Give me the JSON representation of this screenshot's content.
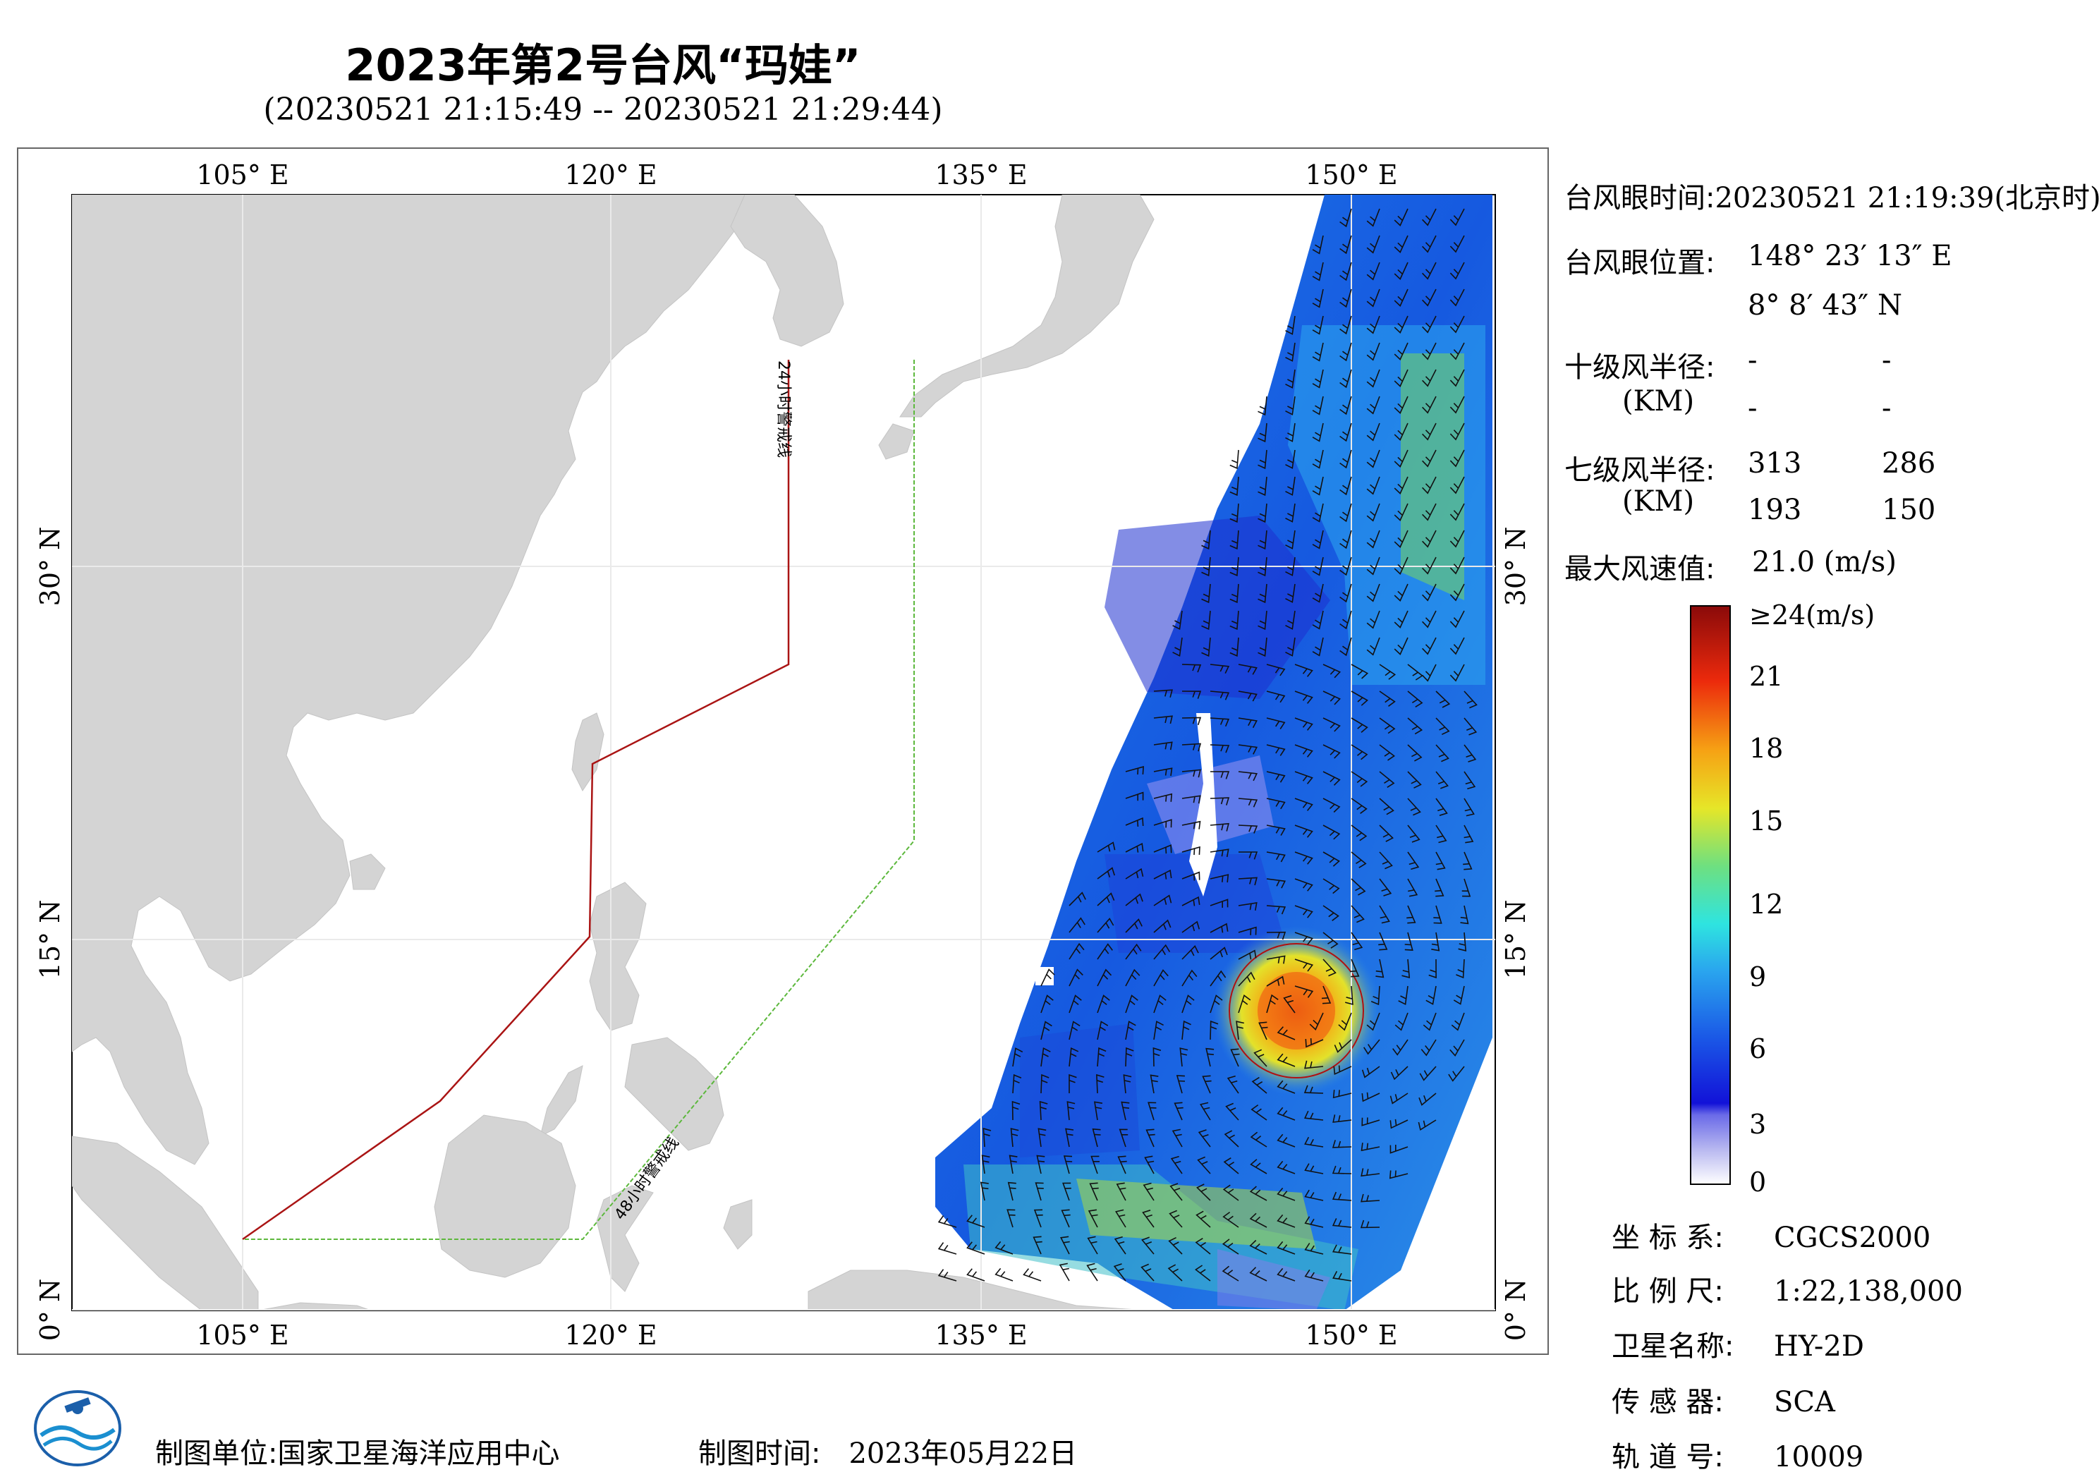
{
  "title": "2023年第2号台风“玛娃”",
  "subtitle": "(20230521 21:15:49 -- 20230521 21:29:44)",
  "map": {
    "lon_ticks": [
      "105° E",
      "120° E",
      "135° E",
      "150° E"
    ],
    "lat_ticks": [
      "30° N",
      "15° N",
      "0° N"
    ],
    "warning_24h": "24小时警戒线",
    "warning_48h": "48小时警戒线",
    "colors": {
      "land": "#d4d4d4",
      "ocean": "#ffffff",
      "warning_24h": "#aa1414",
      "warning_48h": "#5cb83c"
    }
  },
  "info": {
    "eye_time_label": "台风眼时间:",
    "eye_time_value": "20230521 21:19:39(北京时)",
    "eye_pos_label": "台风眼位置:",
    "eye_lon": "148° 23′ 13″ E",
    "eye_lat": "8° 8′ 43″ N",
    "r10_label": "十级风半径:",
    "r10_unit": "(KM)",
    "r10_values": [
      "-",
      "-",
      "-",
      "-"
    ],
    "r7_label": "七级风半径:",
    "r7_unit": "(KM)",
    "r7_values": [
      "313",
      "286",
      "193",
      "150"
    ],
    "max_wind_label": "最大风速值:",
    "max_wind_value": "21.0  (m/s)"
  },
  "colorbar": {
    "labels": [
      "≥24(m/s)",
      "21",
      "18",
      "15",
      "12",
      "9",
      "6",
      "3",
      "0"
    ]
  },
  "meta": [
    {
      "key": "坐 标 系:",
      "value": "CGCS2000"
    },
    {
      "key": "比 例 尺:",
      "value": "1:22,138,000"
    },
    {
      "key": "卫星名称:",
      "value": "HY-2D"
    },
    {
      "key": "传 感 器:",
      "value": "SCA"
    },
    {
      "key": "轨 道 号:",
      "value": "10009"
    }
  ],
  "footer": {
    "unit_label": "制图单位:",
    "unit_value": "国家卫星海洋应用中心",
    "time_label": "制图时间:",
    "time_value": "2023年05月22日"
  }
}
